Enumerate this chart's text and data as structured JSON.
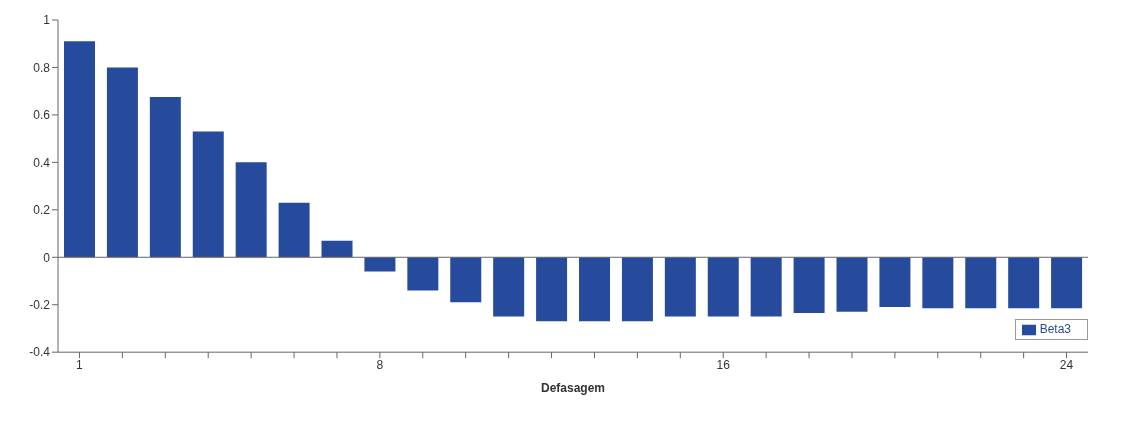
{
  "chart_data": {
    "type": "bar",
    "xlabel": "Defasagem",
    "categories": [
      "1",
      null,
      null,
      null,
      null,
      null,
      null,
      "8",
      null,
      null,
      null,
      null,
      null,
      null,
      null,
      "16",
      null,
      null,
      null,
      null,
      null,
      null,
      null,
      "24"
    ],
    "series": [
      {
        "name": "Beta3",
        "color": "#264b9c",
        "values": [
          0.91,
          0.8,
          0.675,
          0.53,
          0.4,
          0.23,
          0.07,
          -0.06,
          -0.14,
          -0.19,
          -0.25,
          -0.27,
          -0.27,
          -0.27,
          -0.25,
          -0.25,
          -0.25,
          -0.235,
          -0.23,
          -0.21,
          -0.215,
          -0.215,
          -0.215,
          -0.215
        ]
      }
    ],
    "ylim": [
      -0.4,
      1
    ],
    "yticks": [
      -0.4,
      -0.2,
      0,
      0.2,
      0.4,
      0.6,
      0.8,
      1
    ],
    "ref_lines": [
      {
        "axis": "y",
        "value": 0,
        "color": "#666666"
      }
    ],
    "grid": false,
    "legend": "bottom right"
  }
}
